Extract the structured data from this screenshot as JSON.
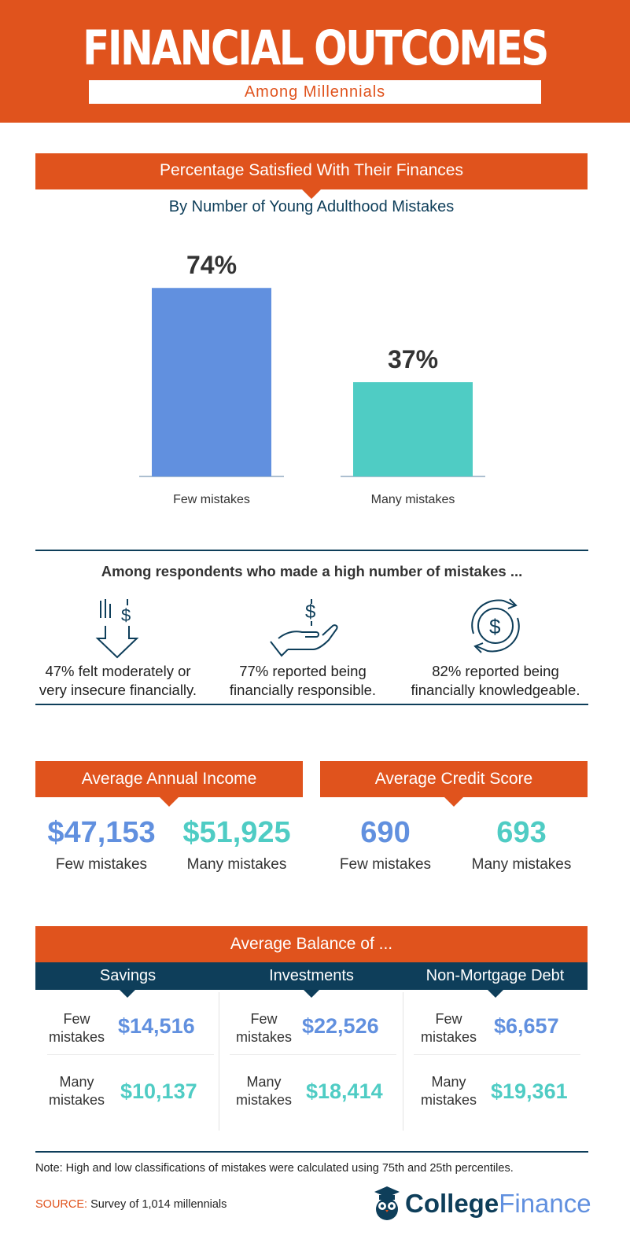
{
  "header": {
    "title": "FINANCIAL OUTCOMES",
    "subtitle": "Among Millennials"
  },
  "satisfaction": {
    "banner": "Percentage Satisfied With Their Finances",
    "subheading": "By Number of Young Adulthood Mistakes"
  },
  "chart_data": {
    "type": "bar",
    "title": "Percentage Satisfied With Their Finances",
    "subtitle": "By Number of Young Adulthood Mistakes",
    "categories": [
      "Few mistakes",
      "Many mistakes"
    ],
    "values": [
      74,
      37
    ],
    "value_labels": [
      "74%",
      "37%"
    ],
    "colors": [
      "#6190df",
      "#4fccc4"
    ],
    "ylim": [
      0,
      100
    ],
    "grid": false,
    "legend": "none"
  },
  "high_mistakes": {
    "heading": "Among respondents who made a high number of mistakes ...",
    "stats": [
      {
        "icon": "down-arrow-dollar-icon",
        "line1": "47% felt moderately or",
        "line2": "very insecure financially."
      },
      {
        "icon": "hand-dollar-icon",
        "line1": "77% reported being",
        "line2": "financially responsible."
      },
      {
        "icon": "circular-dollar-icon",
        "line1": "82% reported being",
        "line2": "financially knowledgeable."
      }
    ]
  },
  "income": {
    "banner": "Average Annual Income",
    "few_value": "$47,153",
    "few_label": "Few mistakes",
    "many_value": "$51,925",
    "many_label": "Many mistakes"
  },
  "credit": {
    "banner": "Average Credit Score",
    "few_value": "690",
    "few_label": "Few mistakes",
    "many_value": "693",
    "many_label": "Many mistakes"
  },
  "balance": {
    "banner": "Average Balance of ...",
    "few_line1": "Few",
    "few_line2": "mistakes",
    "many_line1": "Many",
    "many_line2": "mistakes",
    "columns": [
      {
        "label": "Savings",
        "few": "$14,516",
        "many": "$10,137"
      },
      {
        "label": "Investments",
        "few": "$22,526",
        "many": "$18,414"
      },
      {
        "label": "Non-Mortgage Debt",
        "few": "$6,657",
        "many": "$19,361"
      }
    ]
  },
  "footer": {
    "note": "Note: High and low classifications of mistakes were calculated using 75th and 25th percentiles.",
    "source_label": "SOURCE:",
    "source_text": "Survey of 1,014 millennials",
    "brand_part1": "College",
    "brand_part2": "Finance"
  },
  "colors": {
    "orange": "#e0531d",
    "navy": "#0e3e5a",
    "blue": "#6190df",
    "teal": "#4fccc4"
  }
}
